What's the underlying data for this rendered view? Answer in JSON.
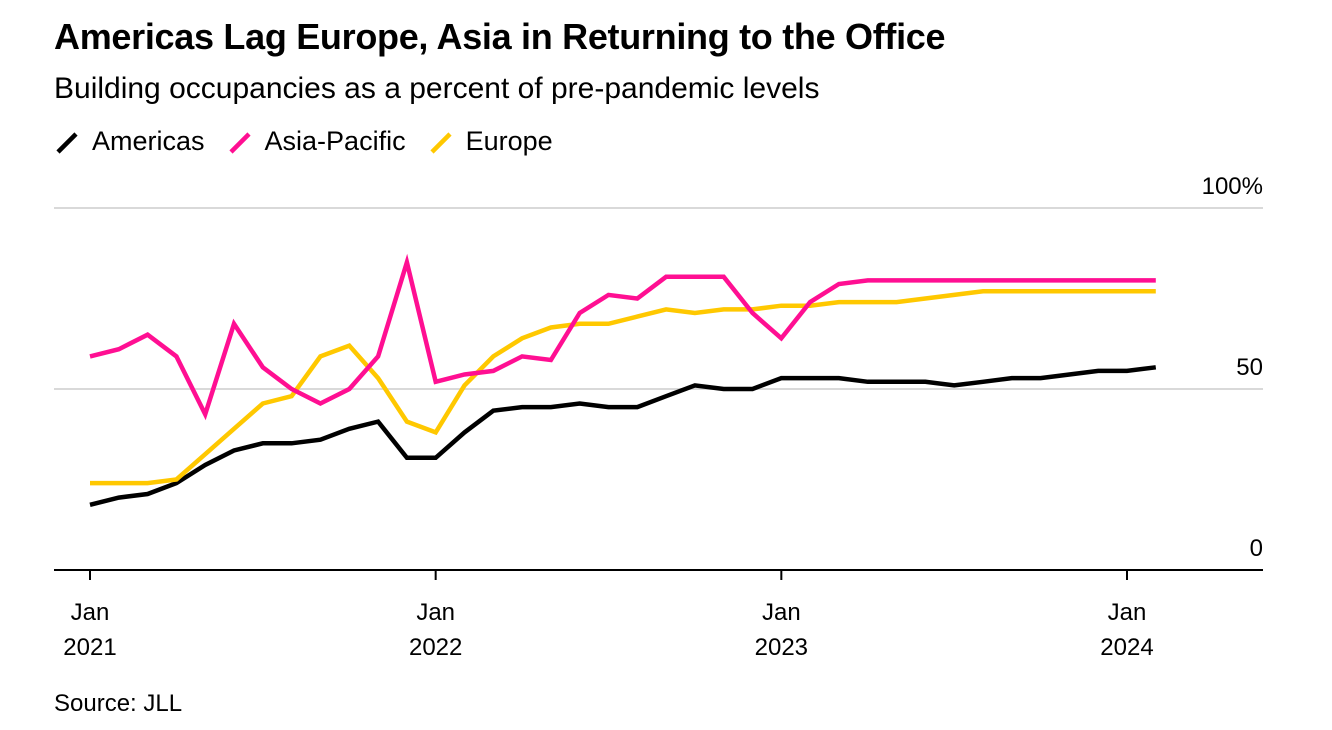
{
  "title": "Americas Lag Europe, Asia in Returning to the Office",
  "subtitle": "Building occupancies as a percent of pre-pandemic levels",
  "source": "Source: JLL",
  "colors": {
    "americas": "#000000",
    "asia_pacific": "#ff0f92",
    "europe": "#ffc800",
    "grid": "#d9d9d9",
    "axis": "#000000"
  },
  "chart_data": {
    "type": "line",
    "title": "Americas Lag Europe, Asia in Returning to the Office",
    "subtitle": "Building occupancies as a percent of pre-pandemic levels",
    "xlabel": "",
    "ylabel": "",
    "ylim": [
      0,
      100
    ],
    "yticks": [
      {
        "value": 0,
        "label": "0"
      },
      {
        "value": 50,
        "label": "50"
      },
      {
        "value": 100,
        "label": "100%"
      }
    ],
    "xticks": [
      {
        "date": "2021-01",
        "label": [
          "Jan",
          "2021"
        ]
      },
      {
        "date": "2022-01",
        "label": [
          "Jan",
          "2022"
        ]
      },
      {
        "date": "2023-01",
        "label": [
          "Jan",
          "2023"
        ]
      },
      {
        "date": "2024-01",
        "label": [
          "Jan",
          "2024"
        ]
      }
    ],
    "xlim": [
      "2020-12",
      "2024-06"
    ],
    "grid": true,
    "legend_position": "top-left",
    "x": [
      "2021-01",
      "2021-02",
      "2021-03",
      "2021-04",
      "2021-05",
      "2021-06",
      "2021-07",
      "2021-08",
      "2021-09",
      "2021-10",
      "2021-11",
      "2021-12",
      "2022-01",
      "2022-02",
      "2022-03",
      "2022-04",
      "2022-05",
      "2022-06",
      "2022-07",
      "2022-08",
      "2022-09",
      "2022-10",
      "2022-11",
      "2022-12",
      "2023-01",
      "2023-02",
      "2023-03",
      "2023-04",
      "2023-05",
      "2023-06",
      "2023-07",
      "2023-08",
      "2023-09",
      "2023-10",
      "2023-11",
      "2023-12",
      "2024-01",
      "2024-02"
    ],
    "series": [
      {
        "name": "Americas",
        "color_key": "americas",
        "values": [
          18,
          20,
          21,
          24,
          29,
          33,
          35,
          35,
          36,
          39,
          41,
          31,
          31,
          38,
          44,
          45,
          45,
          46,
          45,
          45,
          48,
          51,
          50,
          50,
          53,
          53,
          53,
          52,
          52,
          52,
          51,
          52,
          53,
          53,
          54,
          55,
          55,
          56
        ]
      },
      {
        "name": "Asia-Pacific",
        "color_key": "asia_pacific",
        "values": [
          59,
          61,
          65,
          59,
          43,
          68,
          56,
          50,
          46,
          50,
          59,
          85,
          52,
          54,
          55,
          59,
          58,
          71,
          76,
          75,
          81,
          81,
          81,
          71,
          64,
          74,
          79,
          80,
          80,
          80,
          80,
          80,
          80,
          80,
          80,
          80,
          80,
          80
        ]
      },
      {
        "name": "Europe",
        "color_key": "europe",
        "values": [
          24,
          24,
          24,
          25,
          32,
          39,
          46,
          48,
          59,
          62,
          53,
          41,
          38,
          51,
          59,
          64,
          67,
          68,
          68,
          70,
          72,
          71,
          72,
          72,
          73,
          73,
          74,
          74,
          74,
          75,
          76,
          77,
          77,
          77,
          77,
          77,
          77,
          77
        ]
      }
    ]
  }
}
